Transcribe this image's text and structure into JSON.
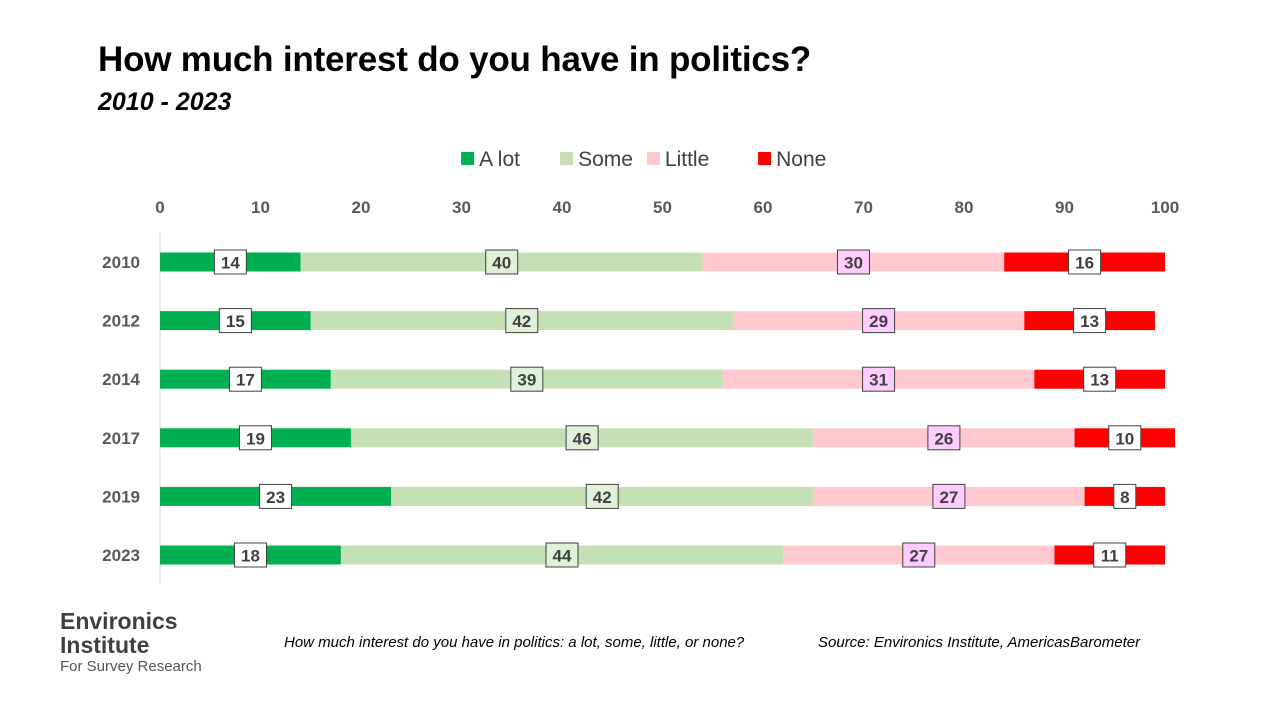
{
  "title": "How much interest do you have in politics?",
  "subtitle": "2010 - 2023",
  "chart_data": {
    "type": "bar",
    "orientation": "horizontal",
    "stacked": true,
    "categories": [
      "2010",
      "2012",
      "2014",
      "2017",
      "2019",
      "2023"
    ],
    "series": [
      {
        "name": "A lot",
        "color": "#00b050",
        "label_fill": "#ffffff",
        "values": [
          14,
          15,
          17,
          19,
          23,
          18
        ]
      },
      {
        "name": "Some",
        "color": "#c5e0b4",
        "label_fill": "#e2f0d9",
        "values": [
          40,
          42,
          39,
          46,
          42,
          44
        ]
      },
      {
        "name": "Little",
        "color": "#ffc7ce",
        "label_fill": "#ffccff",
        "values": [
          30,
          29,
          31,
          26,
          27,
          27
        ]
      },
      {
        "name": "None",
        "color": "#ff0000",
        "label_fill": "#ffffff",
        "values": [
          16,
          13,
          13,
          10,
          8,
          11
        ]
      }
    ],
    "xlim": [
      0,
      100
    ],
    "xticks": [
      "0",
      "10",
      "20",
      "30",
      "40",
      "50",
      "60",
      "70",
      "80",
      "90",
      "100"
    ],
    "axis_position": "top",
    "legend_position": "top",
    "grid": false,
    "data_labels": true
  },
  "footer": {
    "brand_line1": "Environics",
    "brand_line2": "Institute",
    "brand_line3": "For Survey Research",
    "note": "How much interest do you have in politics: a lot, some, little, or none?",
    "source": "Source: Environics Institute, AmericasBarometer"
  }
}
